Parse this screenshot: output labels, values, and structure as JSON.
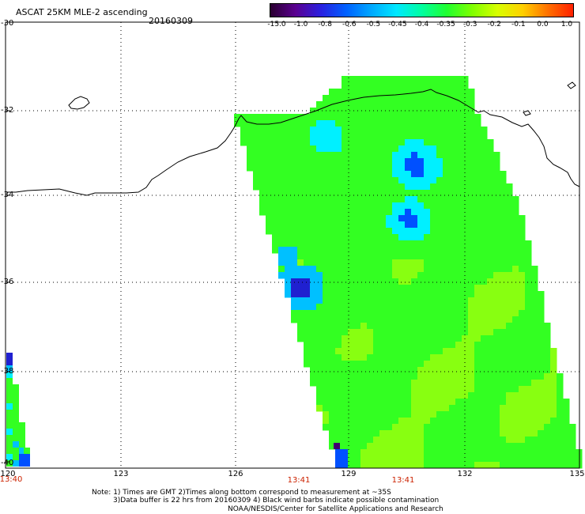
{
  "header": {
    "title": "ASCAT 25KM MLE-2 ascending",
    "date": "20160309"
  },
  "colorbar": {
    "labels": [
      "-15.0",
      "-1.0",
      "-0.8",
      "-0.6",
      "-0.5",
      "-0.45",
      "-0.4",
      "-0.35",
      "-0.3",
      "-0.2",
      "-0.1",
      "0.0",
      "1.0"
    ],
    "colors": [
      "#2a0030",
      "#5a0090",
      "#2a20e0",
      "#0060ff",
      "#00a8ff",
      "#00e8ff",
      "#00ffa0",
      "#20ff30",
      "#80ff00",
      "#d8ff00",
      "#ffd000",
      "#ff7000",
      "#ff2000"
    ]
  },
  "axes": {
    "lat_labels": [
      "-30",
      "-32",
      "-34",
      "-36",
      "-38",
      "-40"
    ],
    "lon_labels": [
      "120",
      "123",
      "126",
      "129",
      "132",
      "135"
    ]
  },
  "times": {
    "left": "13:40",
    "mid1": "13:41",
    "mid2": "13:41"
  },
  "notes": {
    "line1": "Note: 1) Times are GMT 2)Times along bottom correspond to measurement at ~35S",
    "line2": "3)Data buffer is 22 hrs from 20160309 4) Black wind barbs indicate possible contamination",
    "line3": "NOAA/NESDIS/Center for Satellite Applications and Research"
  },
  "palette": {
    "swath_green": "#33ff22",
    "swath_yellowgreen": "#88ff11",
    "swath_cyan": "#00f0ff",
    "swath_lightblue": "#00c0ff",
    "swath_blue": "#0050ff",
    "swath_navy": "#2020d0",
    "swath_purple": "#400070"
  }
}
